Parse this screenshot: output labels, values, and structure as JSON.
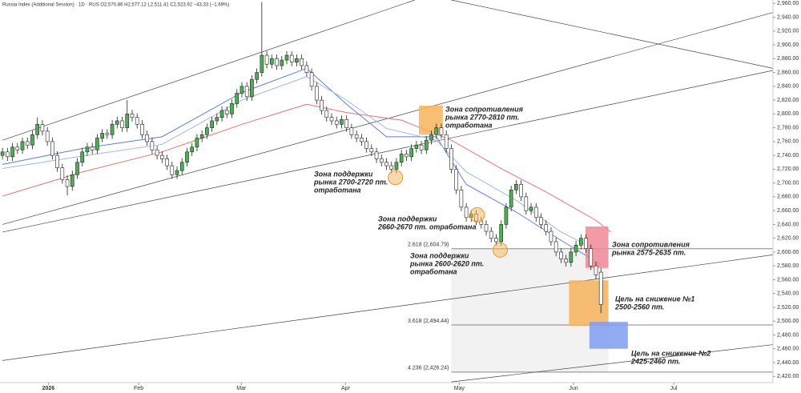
{
  "chart_data": {
    "type": "candlestick",
    "header": "Russia Index (Additional Session) · 1D · RUS  O2,570.86 H2,577.12 L2,511.41 C2,523.92 −43.33 (−1.69%)",
    "up_color": "#4caf50",
    "down_color": "#ffffff",
    "xlim": [
      -0.5,
      154.5
    ],
    "ylim": [
      2411,
      2965
    ],
    "xticks": [
      {
        "value": 9.2,
        "label": "2026"
      },
      {
        "value": 27.3,
        "label": "Feb"
      },
      {
        "value": 47.9,
        "label": "Mar"
      },
      {
        "value": 68.8,
        "label": "Apr"
      },
      {
        "value": 91.6,
        "label": "May"
      },
      {
        "value": 114.5,
        "label": "Jun"
      },
      {
        "value": 134.6,
        "label": "Jul"
      }
    ],
    "yticks": [
      {
        "value": 2420,
        "label": "2,420.00"
      },
      {
        "value": 2440,
        "label": "2,440.00"
      },
      {
        "value": 2460,
        "label": "2,460.00"
      },
      {
        "value": 2480,
        "label": "2,480.00"
      },
      {
        "value": 2500,
        "label": "2,500.00"
      },
      {
        "value": 2520,
        "label": "2,520.00"
      },
      {
        "value": 2540,
        "label": "2,540.00"
      },
      {
        "value": 2560,
        "label": "2,560.00"
      },
      {
        "value": 2580,
        "label": "2,580.00"
      },
      {
        "value": 2600,
        "label": "2,600.00"
      },
      {
        "value": 2620,
        "label": "2,620.00"
      },
      {
        "value": 2640,
        "label": "2,640.00"
      },
      {
        "value": 2660,
        "label": "2,660.00"
      },
      {
        "value": 2680,
        "label": "2,680.00"
      },
      {
        "value": 2700,
        "label": "2,700.00"
      },
      {
        "value": 2720,
        "label": "2,720.00"
      },
      {
        "value": 2740,
        "label": "2,740.00"
      },
      {
        "value": 2760,
        "label": "2,760.00"
      },
      {
        "value": 2780,
        "label": "2,780.00"
      },
      {
        "value": 2800,
        "label": "2,800.00"
      },
      {
        "value": 2820,
        "label": "2,820.00"
      },
      {
        "value": 2840,
        "label": "2,840.00"
      },
      {
        "value": 2860,
        "label": "2,860.00"
      },
      {
        "value": 2880,
        "label": "2,880.00"
      },
      {
        "value": 2900,
        "label": "2,900.00"
      },
      {
        "value": 2920,
        "label": "2,920.00"
      },
      {
        "value": 2940,
        "label": "2,940.00"
      },
      {
        "value": 2960,
        "label": "2,960.00"
      }
    ],
    "x": [
      0,
      1,
      2,
      3,
      4,
      5,
      6,
      7,
      8,
      9,
      10,
      11,
      12,
      13,
      14,
      15,
      16,
      17,
      18,
      19,
      20,
      21,
      22,
      23,
      24,
      25,
      26,
      27,
      28,
      29,
      30,
      31,
      32,
      33,
      34,
      35,
      36,
      37,
      38,
      39,
      40,
      41,
      42,
      43,
      44,
      45,
      46,
      47,
      48,
      49,
      50,
      51,
      52,
      53,
      54,
      55,
      56,
      57,
      58,
      59,
      60,
      61,
      62,
      63,
      64,
      65,
      66,
      67,
      68,
      69,
      70,
      71,
      72,
      73,
      74,
      75,
      76,
      77,
      78,
      79,
      80,
      81,
      82,
      83,
      84,
      85,
      86,
      87,
      88,
      89,
      90,
      91,
      92,
      93,
      94,
      95,
      96,
      97,
      98,
      99,
      100,
      101,
      102,
      103,
      104,
      105,
      106,
      107,
      108,
      109,
      110,
      111,
      112,
      113,
      114,
      115,
      116,
      117,
      118,
      119,
      120
    ],
    "open": [
      2740,
      2745,
      2738,
      2752,
      2748,
      2760,
      2755,
      2770,
      2785,
      2775,
      2760,
      2740,
      2722,
      2705,
      2695,
      2712,
      2730,
      2745,
      2752,
      2748,
      2765,
      2772,
      2770,
      2785,
      2790,
      2780,
      2800,
      2795,
      2785,
      2770,
      2760,
      2748,
      2740,
      2735,
      2725,
      2712,
      2718,
      2730,
      2745,
      2752,
      2765,
      2770,
      2780,
      2790,
      2795,
      2805,
      2800,
      2815,
      2830,
      2840,
      2825,
      2850,
      2860,
      2885,
      2872,
      2880,
      2870,
      2878,
      2885,
      2875,
      2880,
      2870,
      2860,
      2840,
      2820,
      2805,
      2795,
      2790,
      2785,
      2792,
      2780,
      2770,
      2765,
      2760,
      2750,
      2745,
      2735,
      2730,
      2725,
      2720,
      2730,
      2742,
      2738,
      2750,
      2755,
      2748,
      2762,
      2770,
      2780,
      2770,
      2750,
      2720,
      2690,
      2665,
      2650,
      2655,
      2645,
      2640,
      2630,
      2620,
      2615,
      2640,
      2665,
      2690,
      2698,
      2680,
      2660,
      2665,
      2650,
      2640,
      2630,
      2615,
      2600,
      2590,
      2585,
      2600,
      2610,
      2620,
      2605,
      2580,
      2570.86
    ],
    "high": [
      2751,
      2751,
      2758,
      2758,
      2766,
      2766,
      2776,
      2795,
      2791,
      2781,
      2766,
      2746,
      2728,
      2711,
      2718,
      2736,
      2751,
      2758,
      2758,
      2771,
      2778,
      2778,
      2791,
      2796,
      2796,
      2820,
      2806,
      2801,
      2791,
      2776,
      2766,
      2754,
      2746,
      2741,
      2731,
      2724,
      2736,
      2751,
      2758,
      2771,
      2776,
      2786,
      2796,
      2801,
      2811,
      2811,
      2821,
      2836,
      2846,
      2846,
      2856,
      2866,
      2962,
      2891,
      2886,
      2886,
      2884,
      2891,
      2891,
      2886,
      2886,
      2876,
      2866,
      2846,
      2826,
      2811,
      2801,
      2796,
      2798,
      2798,
      2786,
      2776,
      2771,
      2766,
      2756,
      2751,
      2741,
      2736,
      2731,
      2736,
      2748,
      2748,
      2756,
      2761,
      2761,
      2768,
      2776,
      2786,
      2786,
      2776,
      2756,
      2726,
      2696,
      2671,
      2661,
      2661,
      2651,
      2646,
      2636,
      2626,
      2646,
      2671,
      2696,
      2704,
      2704,
      2686,
      2671,
      2671,
      2656,
      2646,
      2636,
      2621,
      2606,
      2596,
      2606,
      2616,
      2626,
      2626,
      2611,
      2586,
      2577.12
    ],
    "low": [
      2734,
      2732,
      2732,
      2742,
      2742,
      2749,
      2749,
      2764,
      2769,
      2754,
      2734,
      2716,
      2699,
      2682,
      2689,
      2706,
      2724,
      2739,
      2742,
      2742,
      2759,
      2764,
      2764,
      2779,
      2774,
      2774,
      2789,
      2779,
      2764,
      2754,
      2742,
      2734,
      2729,
      2719,
      2706,
      2706,
      2712,
      2724,
      2739,
      2746,
      2759,
      2764,
      2774,
      2784,
      2789,
      2794,
      2794,
      2809,
      2824,
      2819,
      2819,
      2844,
      2854,
      2866,
      2866,
      2864,
      2864,
      2872,
      2869,
      2869,
      2864,
      2854,
      2834,
      2814,
      2799,
      2789,
      2784,
      2779,
      2779,
      2774,
      2764,
      2759,
      2754,
      2744,
      2739,
      2729,
      2724,
      2719,
      2714,
      2714,
      2724,
      2732,
      2732,
      2744,
      2742,
      2742,
      2756,
      2764,
      2764,
      2744,
      2714,
      2684,
      2659,
      2644,
      2644,
      2639,
      2634,
      2624,
      2614,
      2609,
      2609,
      2634,
      2659,
      2684,
      2674,
      2654,
      2654,
      2644,
      2634,
      2624,
      2609,
      2594,
      2584,
      2579,
      2579,
      2594,
      2604,
      2599,
      2574,
      2561,
      2511.41
    ],
    "close": [
      2745,
      2738,
      2752,
      2748,
      2760,
      2755,
      2770,
      2785,
      2775,
      2760,
      2740,
      2722,
      2705,
      2695,
      2712,
      2730,
      2745,
      2752,
      2748,
      2765,
      2772,
      2770,
      2785,
      2790,
      2780,
      2800,
      2795,
      2785,
      2770,
      2760,
      2748,
      2740,
      2735,
      2725,
      2712,
      2718,
      2730,
      2745,
      2752,
      2765,
      2770,
      2780,
      2790,
      2795,
      2805,
      2800,
      2815,
      2830,
      2840,
      2825,
      2850,
      2860,
      2885,
      2872,
      2880,
      2870,
      2878,
      2885,
      2875,
      2880,
      2870,
      2860,
      2840,
      2820,
      2805,
      2795,
      2790,
      2785,
      2792,
      2780,
      2770,
      2765,
      2760,
      2750,
      2745,
      2735,
      2730,
      2725,
      2720,
      2730,
      2742,
      2738,
      2750,
      2755,
      2748,
      2762,
      2770,
      2780,
      2770,
      2750,
      2720,
      2690,
      2665,
      2650,
      2655,
      2645,
      2640,
      2630,
      2620,
      2615,
      2640,
      2665,
      2690,
      2698,
      2680,
      2660,
      2665,
      2650,
      2640,
      2630,
      2615,
      2600,
      2590,
      2585,
      2600,
      2610,
      2620,
      2605,
      2580,
      2567.25,
      2523.92
    ],
    "moving_averages": [
      {
        "color": "#e57373",
        "x": [
          0,
          16,
          32,
          48,
          61,
          69,
          80,
          90,
          100,
          109,
          119,
          122
        ],
        "values": [
          2681,
          2716,
          2745,
          2785,
          2814,
          2802,
          2791,
          2762,
          2721,
          2687,
          2646,
          2629
        ]
      },
      {
        "color": "#5c7fd6",
        "x": [
          0,
          16,
          32,
          48,
          61,
          69,
          77,
          87,
          93,
          103,
          112,
          120
        ],
        "values": [
          2727,
          2750,
          2767,
          2831,
          2866,
          2814,
          2767,
          2767,
          2698,
          2658,
          2617,
          2582
        ]
      },
      {
        "color": "#9fb8e8",
        "x": [
          0,
          16,
          32,
          48,
          61,
          69,
          77,
          87,
          93,
          103,
          112,
          120
        ],
        "values": [
          2721,
          2739,
          2756,
          2820,
          2854,
          2820,
          2779,
          2762,
          2716,
          2675,
          2629,
          2600
        ]
      }
    ],
    "trendlines": [
      {
        "x": [
          0,
          82.7
        ],
        "values": [
          2762,
          2965
        ]
      },
      {
        "x": [
          0,
          154.5
        ],
        "values": [
          2640,
          2947
        ]
      },
      {
        "x": [
          0,
          154.5
        ],
        "values": [
          2629,
          2863
        ]
      },
      {
        "x": [
          0,
          154.5
        ],
        "values": [
          2443,
          2596
        ]
      },
      {
        "x": [
          90,
          154.5
        ],
        "values": [
          2412,
          2466
        ]
      },
      {
        "x": [
          90,
          154.5
        ],
        "values": [
          2965,
          2866
        ]
      }
    ],
    "fib_x": [
      90,
      121.5
    ],
    "fib_levels": [
      {
        "value": 2604.79,
        "label": "2.618 (2,604.79)"
      },
      {
        "value": 2494.44,
        "label": "3.618 (2,494.44)"
      },
      {
        "value": 2426.24,
        "label": "4.236 (2,426.24)"
      }
    ],
    "zones": [
      {
        "color": "#f6b35c",
        "x": [
          83.5,
          88.3
        ],
        "values": [
          2770,
          2812
        ]
      },
      {
        "color": "#f08a96",
        "x": [
          116.9,
          121.5
        ],
        "values": [
          2577,
          2637
        ]
      },
      {
        "color": "#f6b35c",
        "x": [
          113.6,
          121.5
        ],
        "values": [
          2493,
          2559
        ]
      },
      {
        "color": "#7f9cf0",
        "x": [
          117.7,
          125.4
        ],
        "values": [
          2460,
          2499
        ]
      }
    ],
    "circles": [
      {
        "x": 78.8,
        "y": 2708
      },
      {
        "x": 95.2,
        "y": 2654
      },
      {
        "x": 99.8,
        "y": 2603
      }
    ],
    "annotations": [
      {
        "lines": [
          "Зона сопротивления",
          "рынка 2770-2810 пт.",
          "отработана"
        ]
      },
      {
        "lines": [
          "Зона поддержки",
          "рынка 2700-2720 пт.",
          "отработана"
        ]
      },
      {
        "lines": [
          "Зона поддержки",
          "2660-2670 пт. отработана"
        ]
      },
      {
        "lines": [
          "Зона поддержки",
          "рынка 2600-2620 пт.",
          "отработана"
        ]
      },
      {
        "lines": [
          "Зона сопротивления",
          "рынка 2575-2635 пт."
        ]
      },
      {
        "lines": [
          "Цель на снижение №1",
          "2500-2560 пт."
        ]
      },
      {
        "lines": [
          "Цель на снижение №2",
          "2425-2460 пт."
        ]
      }
    ]
  }
}
